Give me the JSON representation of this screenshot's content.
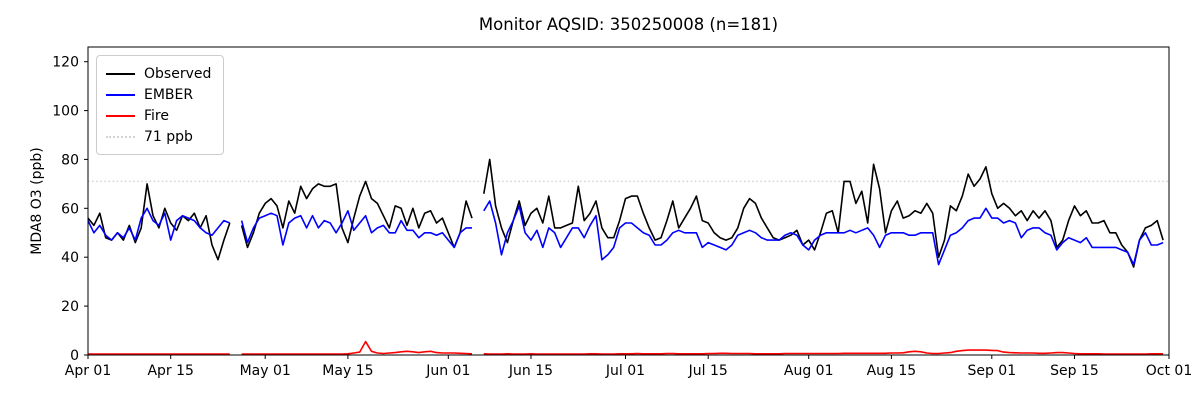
{
  "chart_data": {
    "type": "line",
    "title": "Monitor AQSID: 350250008 (n=181)",
    "xlabel": "",
    "ylabel": "MDA8 O3 (ppb)",
    "ylim": [
      0,
      126
    ],
    "yticks": [
      0,
      20,
      40,
      60,
      80,
      100,
      120
    ],
    "grid": false,
    "legend_position": "upper left",
    "x_total_days": 183,
    "x_range_note": "daily values Apr 01 - Sep 30, axis ends Oct 01",
    "xticks": [
      {
        "label": "Apr 01",
        "day": 0
      },
      {
        "label": "Apr 15",
        "day": 14
      },
      {
        "label": "May 01",
        "day": 30
      },
      {
        "label": "May 15",
        "day": 44
      },
      {
        "label": "Jun 01",
        "day": 61
      },
      {
        "label": "Jun 15",
        "day": 75
      },
      {
        "label": "Jul 01",
        "day": 91
      },
      {
        "label": "Jul 15",
        "day": 105
      },
      {
        "label": "Aug 01",
        "day": 122
      },
      {
        "label": "Aug 15",
        "day": 136
      },
      {
        "label": "Sep 01",
        "day": 153
      },
      {
        "label": "Sep 15",
        "day": 167
      },
      {
        "label": "Oct 01",
        "day": 183
      }
    ],
    "threshold": {
      "label": "71 ppb",
      "value": 71,
      "color": "#d3d3d3",
      "linestyle": "dotted"
    },
    "series": [
      {
        "name": "Observed",
        "color": "#000000",
        "linestyle": "solid",
        "values": [
          56,
          53,
          58,
          48,
          47,
          50,
          47,
          53,
          46,
          52,
          70,
          57,
          52,
          60,
          54,
          51,
          57,
          55,
          58,
          52,
          57,
          45,
          39,
          47,
          54,
          null,
          53,
          44,
          50,
          58,
          62,
          64,
          61,
          52,
          63,
          58,
          69,
          64,
          68,
          70,
          69,
          69,
          70,
          52,
          46,
          56,
          65,
          71,
          64,
          62,
          57,
          52,
          61,
          60,
          53,
          60,
          52,
          58,
          59,
          54,
          56,
          50,
          44,
          50,
          63,
          56,
          null,
          66,
          80,
          61,
          52,
          46,
          55,
          63,
          53,
          58,
          60,
          54,
          65,
          52,
          52,
          53,
          54,
          69,
          55,
          58,
          63,
          52,
          48,
          48,
          55,
          64,
          65,
          65,
          58,
          52,
          47,
          48,
          55,
          63,
          52,
          56,
          60,
          65,
          55,
          54,
          50,
          48,
          47,
          48,
          52,
          60,
          64,
          62,
          56,
          52,
          48,
          47,
          48,
          49,
          51,
          45,
          47,
          43,
          50,
          58,
          59,
          50,
          71,
          71,
          62,
          67,
          54,
          78,
          68,
          50,
          59,
          63,
          56,
          57,
          59,
          58,
          62,
          58,
          40,
          47,
          61,
          59,
          65,
          74,
          69,
          72,
          77,
          66,
          60,
          62,
          60,
          57,
          59,
          55,
          59,
          56,
          59,
          55,
          44,
          47,
          55,
          61,
          57,
          59,
          54,
          54,
          55,
          50,
          50,
          45,
          42,
          36,
          47,
          52,
          53,
          55,
          47
        ]
      },
      {
        "name": "EMBER",
        "color": "#0000ff",
        "linestyle": "solid",
        "values": [
          55,
          50,
          53,
          49,
          47,
          50,
          48,
          52,
          47,
          56,
          60,
          55,
          53,
          58,
          47,
          55,
          57,
          56,
          55,
          52,
          50,
          49,
          52,
          55,
          54,
          null,
          55,
          46,
          52,
          56,
          57,
          58,
          57,
          45,
          54,
          56,
          57,
          52,
          57,
          52,
          55,
          54,
          50,
          54,
          59,
          51,
          54,
          57,
          50,
          52,
          53,
          50,
          50,
          55,
          51,
          51,
          48,
          50,
          50,
          49,
          50,
          47,
          44,
          50,
          52,
          52,
          null,
          59,
          63,
          54,
          41,
          50,
          55,
          61,
          50,
          47,
          51,
          44,
          52,
          50,
          44,
          48,
          52,
          52,
          48,
          53,
          57,
          39,
          41,
          44,
          52,
          54,
          54,
          52,
          50,
          49,
          45,
          45,
          47,
          50,
          51,
          50,
          50,
          50,
          44,
          46,
          45,
          44,
          43,
          45,
          49,
          50,
          51,
          50,
          48,
          47,
          47,
          47,
          49,
          50,
          49,
          45,
          43,
          47,
          49,
          50,
          50,
          50,
          50,
          51,
          50,
          51,
          52,
          49,
          44,
          49,
          50,
          50,
          50,
          49,
          49,
          50,
          50,
          50,
          37,
          43,
          49,
          50,
          52,
          55,
          56,
          56,
          60,
          56,
          56,
          54,
          55,
          54,
          48,
          51,
          52,
          52,
          50,
          49,
          43,
          46,
          48,
          47,
          46,
          48,
          44,
          44,
          44,
          44,
          44,
          43,
          42,
          37,
          47,
          50,
          45,
          45,
          46
        ]
      },
      {
        "name": "Fire",
        "color": "#ff0000",
        "linestyle": "solid",
        "values": [
          0.4,
          0.4,
          0.4,
          0.4,
          0.4,
          0.4,
          0.4,
          0.4,
          0.4,
          0.4,
          0.4,
          0.4,
          0.4,
          0.4,
          0.4,
          0.4,
          0.4,
          0.4,
          0.4,
          0.4,
          0.4,
          0.4,
          0.4,
          0.4,
          0.4,
          null,
          0.4,
          0.4,
          0.4,
          0.4,
          0.4,
          0.4,
          0.4,
          0.4,
          0.4,
          0.4,
          0.4,
          0.4,
          0.4,
          0.4,
          0.4,
          0.4,
          0.4,
          0.4,
          0.5,
          0.8,
          1.2,
          5.5,
          1.5,
          0.8,
          0.6,
          0.8,
          1.0,
          1.3,
          1.5,
          1.3,
          1.0,
          1.3,
          1.5,
          1.0,
          0.8,
          0.8,
          0.8,
          0.7,
          0.6,
          0.5,
          null,
          0.5,
          0.4,
          0.4,
          0.4,
          0.5,
          0.4,
          0.4,
          0.4,
          0.5,
          0.4,
          0.4,
          0.4,
          0.4,
          0.4,
          0.4,
          0.4,
          0.4,
          0.4,
          0.5,
          0.5,
          0.4,
          0.4,
          0.4,
          0.5,
          0.5,
          0.5,
          0.6,
          0.5,
          0.5,
          0.5,
          0.5,
          0.6,
          0.6,
          0.5,
          0.5,
          0.5,
          0.5,
          0.5,
          0.6,
          0.6,
          0.7,
          0.7,
          0.6,
          0.6,
          0.6,
          0.6,
          0.5,
          0.5,
          0.5,
          0.5,
          0.5,
          0.6,
          0.6,
          0.6,
          0.6,
          0.6,
          0.6,
          0.6,
          0.6,
          0.6,
          0.6,
          0.7,
          0.7,
          0.7,
          0.7,
          0.7,
          0.7,
          0.7,
          0.7,
          0.8,
          0.8,
          0.9,
          1.3,
          1.5,
          1.3,
          0.8,
          0.6,
          0.6,
          0.8,
          1.0,
          1.5,
          1.8,
          2.0,
          2.0,
          2.0,
          2.0,
          1.9,
          1.8,
          1.2,
          1.0,
          0.9,
          0.8,
          0.8,
          0.8,
          0.7,
          0.7,
          0.8,
          1.0,
          1.0,
          0.8,
          0.6,
          0.5,
          0.5,
          0.5,
          0.5,
          0.4,
          0.4,
          0.4,
          0.4,
          0.4,
          0.4,
          0.4,
          0.4,
          0.5,
          0.5,
          0.5
        ]
      }
    ]
  }
}
